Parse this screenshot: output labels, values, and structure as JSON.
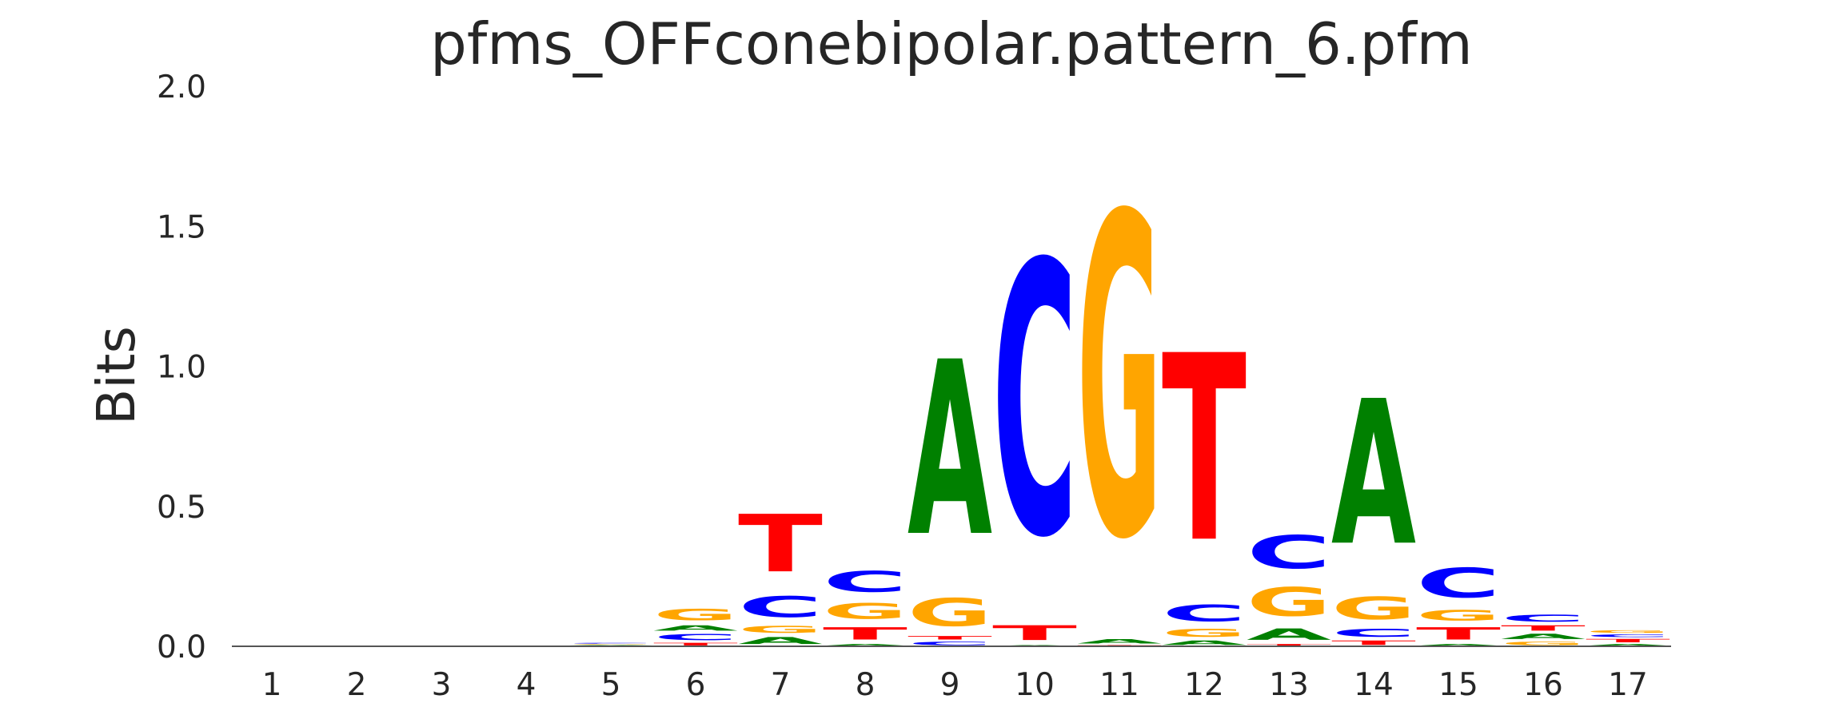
{
  "chart_data": {
    "type": "sequence-logo",
    "title": "pfms_OFFconebipolar.pattern_6.pfm",
    "xlabel": "",
    "ylabel": "Bits",
    "ylim": [
      0,
      2.0
    ],
    "y_ticks": [
      "0.0",
      "0.5",
      "1.0",
      "1.5",
      "2.0"
    ],
    "categories": [
      "1",
      "2",
      "3",
      "4",
      "5",
      "6",
      "7",
      "8",
      "9",
      "10",
      "11",
      "12",
      "13",
      "14",
      "15",
      "16",
      "17"
    ],
    "grid": false,
    "colors": {
      "A": "#008000",
      "C": "#0000ff",
      "G": "#ffa500",
      "T": "#ff0000"
    },
    "positions": [
      {
        "pos": "1",
        "letters": []
      },
      {
        "pos": "2",
        "letters": []
      },
      {
        "pos": "3",
        "letters": []
      },
      {
        "pos": "4",
        "letters": []
      },
      {
        "pos": "5",
        "letters": [
          {
            "base": "T",
            "bits": 0.003
          },
          {
            "base": "A",
            "bits": 0.003
          },
          {
            "base": "G",
            "bits": 0.003
          },
          {
            "base": "C",
            "bits": 0.004
          }
        ]
      },
      {
        "pos": "6",
        "letters": [
          {
            "base": "T",
            "bits": 0.015
          },
          {
            "base": "C",
            "bits": 0.035
          },
          {
            "base": "A",
            "bits": 0.03
          },
          {
            "base": "G",
            "bits": 0.065
          }
        ]
      },
      {
        "pos": "7",
        "letters": [
          {
            "base": "A",
            "bits": 0.04
          },
          {
            "base": "G",
            "bits": 0.04
          },
          {
            "base": "C",
            "bits": 0.12
          },
          {
            "base": "T",
            "bits": 0.33
          }
        ]
      },
      {
        "pos": "8",
        "letters": [
          {
            "base": "A",
            "bits": 0.01
          },
          {
            "base": "T",
            "bits": 0.07
          },
          {
            "base": "G",
            "bits": 0.09
          },
          {
            "base": "C",
            "bits": 0.12
          }
        ]
      },
      {
        "pos": "9",
        "letters": [
          {
            "base": "C",
            "bits": 0.02
          },
          {
            "base": "T",
            "bits": 0.02
          },
          {
            "base": "G",
            "bits": 0.16
          },
          {
            "base": "A",
            "bits": 1.0
          }
        ]
      },
      {
        "pos": "10",
        "letters": [
          {
            "base": "A",
            "bits": 0.005
          },
          {
            "base": "T",
            "bits": 0.085
          },
          {
            "base": "C",
            "bits": 1.56
          }
        ]
      },
      {
        "pos": "11",
        "letters": [
          {
            "base": "T",
            "bits": 0.005
          },
          {
            "base": "A",
            "bits": 0.025
          },
          {
            "base": "G",
            "bits": 1.84
          }
        ]
      },
      {
        "pos": "12",
        "letters": [
          {
            "base": "A",
            "bits": 0.025
          },
          {
            "base": "G",
            "bits": 0.045
          },
          {
            "base": "C",
            "bits": 0.095
          },
          {
            "base": "T",
            "bits": 1.07
          }
        ]
      },
      {
        "pos": "13",
        "letters": [
          {
            "base": "T",
            "bits": 0.01
          },
          {
            "base": "A",
            "bits": 0.065
          },
          {
            "base": "G",
            "bits": 0.165
          },
          {
            "base": "C",
            "bits": 0.19
          }
        ]
      },
      {
        "pos": "14",
        "letters": [
          {
            "base": "T",
            "bits": 0.025
          },
          {
            "base": "C",
            "bits": 0.045
          },
          {
            "base": "G",
            "bits": 0.13
          },
          {
            "base": "A",
            "bits": 0.83
          }
        ]
      },
      {
        "pos": "15",
        "letters": [
          {
            "base": "A",
            "bits": 0.01
          },
          {
            "base": "T",
            "bits": 0.07
          },
          {
            "base": "G",
            "bits": 0.06
          },
          {
            "base": "C",
            "bits": 0.17
          }
        ]
      },
      {
        "pos": "16",
        "letters": [
          {
            "base": "G",
            "bits": 0.02
          },
          {
            "base": "A",
            "bits": 0.03
          },
          {
            "base": "T",
            "bits": 0.03
          },
          {
            "base": "C",
            "bits": 0.04
          }
        ]
      },
      {
        "pos": "17",
        "letters": [
          {
            "base": "A",
            "bits": 0.01
          },
          {
            "base": "T",
            "bits": 0.02
          },
          {
            "base": "C",
            "bits": 0.015
          },
          {
            "base": "G",
            "bits": 0.015
          }
        ]
      }
    ]
  }
}
